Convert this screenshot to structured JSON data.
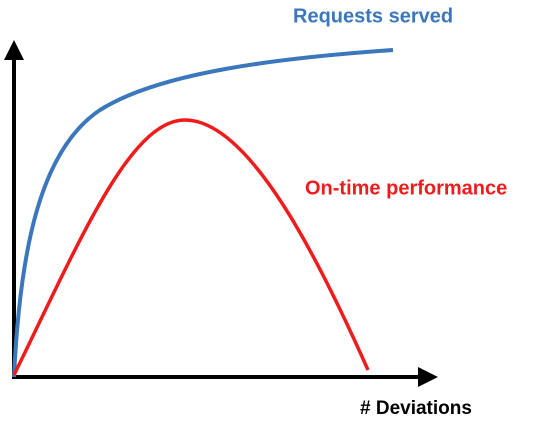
{
  "labels": {
    "series_top": "Requests served",
    "series_bottom": "On-time performance",
    "x_axis": "# Deviations"
  }
}
